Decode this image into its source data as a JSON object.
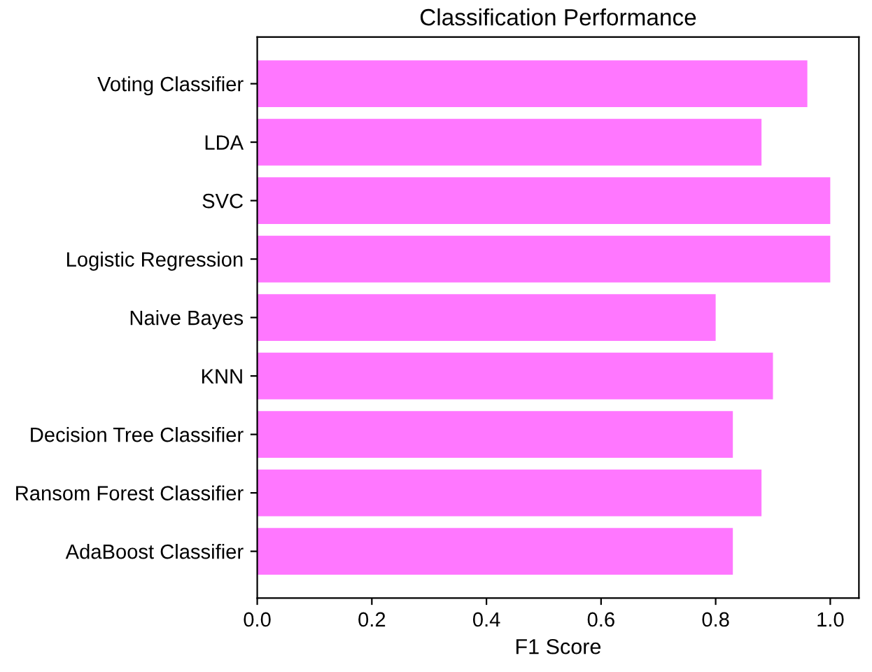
{
  "chart_data": {
    "type": "bar",
    "orientation": "horizontal",
    "title": "Classification Performance",
    "xlabel": "F1 Score",
    "categories": [
      "Voting Classifier",
      "LDA",
      "SVC",
      "Logistic Regression",
      "Naive Bayes",
      "KNN",
      "Decision Tree Classifier",
      "Ransom Forest Classifier",
      "AdaBoost Classifier"
    ],
    "values": [
      0.96,
      0.88,
      1.0,
      1.0,
      0.8,
      0.9,
      0.83,
      0.88,
      0.83
    ],
    "color": "#ff77ff",
    "xlim": [
      0,
      1.05
    ],
    "xticks": [
      {
        "value": 0,
        "label": "0.0"
      },
      0.2,
      0.4,
      0.6,
      0.8,
      {
        "value": 1.0,
        "label": "1.0"
      }
    ],
    "grid": false
  }
}
